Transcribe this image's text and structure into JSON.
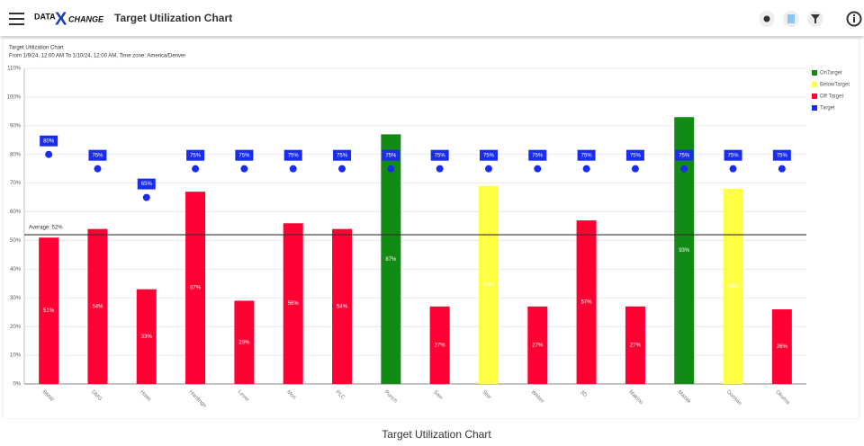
{
  "header": {
    "logo_left": "DATA",
    "logo_x": "X",
    "logo_right": "CHANGE",
    "title": "Target Utilization Chart"
  },
  "chart_data": {
    "type": "bar",
    "title": "Target Utilization Chart",
    "subtitle": "From 1/9/24, 12:00 AM To 1/10/24, 12:00 AM, Time zone: America/Denver",
    "categories": [
      "BMW",
      "DMG",
      "Haas",
      "Hardinge",
      "Lever",
      "Mori",
      "PLC",
      "Punch",
      "Saw",
      "Star",
      "Weber",
      "3D",
      "Makino",
      "Mazak",
      "Doosan",
      "Okuma"
    ],
    "series": [
      {
        "name": "OnTarget",
        "type": "bar",
        "color": "#138a13",
        "values": [
          null,
          null,
          null,
          null,
          null,
          null,
          null,
          87,
          null,
          null,
          null,
          null,
          null,
          93,
          null,
          null
        ],
        "value_labels": [
          null,
          null,
          null,
          null,
          null,
          null,
          null,
          "87%",
          null,
          null,
          null,
          null,
          null,
          "93%",
          null,
          null
        ]
      },
      {
        "name": "BelowTarget",
        "type": "bar",
        "color": "#ffff44",
        "values": [
          null,
          null,
          null,
          null,
          null,
          null,
          null,
          null,
          null,
          69,
          null,
          null,
          null,
          null,
          68,
          null
        ],
        "value_labels": [
          null,
          null,
          null,
          null,
          null,
          null,
          null,
          null,
          null,
          "69%",
          null,
          null,
          null,
          null,
          "68%",
          null
        ]
      },
      {
        "name": "Off Target",
        "type": "bar",
        "color": "#ff0033",
        "values": [
          51,
          54,
          33,
          67,
          29,
          56,
          54,
          null,
          27,
          null,
          27,
          57,
          27,
          null,
          null,
          26
        ],
        "value_labels": [
          "51%",
          "54%",
          "33%",
          "67%",
          "29%",
          "56%",
          "54%",
          null,
          "27%",
          null,
          "27%",
          "57%",
          "27%",
          null,
          null,
          "26%"
        ]
      },
      {
        "name": "Target",
        "type": "scatter",
        "color": "#1a2cf0",
        "values": [
          80,
          75,
          65,
          75,
          75,
          75,
          75,
          75,
          75,
          75,
          75,
          75,
          75,
          75,
          75,
          75
        ],
        "value_labels": [
          "80%",
          "75%",
          "65%",
          "75%",
          "75%",
          "75%",
          "75%",
          "75%",
          "75%",
          "75%",
          "75%",
          "75%",
          "75%",
          "75%",
          "75%",
          "75%"
        ]
      }
    ],
    "average": {
      "value": 52,
      "label": "Average: 52%"
    },
    "ylim": [
      0,
      110
    ],
    "yticks": [
      {
        "value": 0,
        "label": "0%"
      },
      {
        "value": 10,
        "label": "10%"
      },
      {
        "value": 20,
        "label": "20%"
      },
      {
        "value": 30,
        "label": "30%"
      },
      {
        "value": 40,
        "label": "40%"
      },
      {
        "value": 50,
        "label": "50%"
      },
      {
        "value": 60,
        "label": "60%"
      },
      {
        "value": 70,
        "label": "70%"
      },
      {
        "value": 80,
        "label": "80%"
      },
      {
        "value": 90,
        "label": "90%"
      },
      {
        "value": 100,
        "label": "100%"
      },
      {
        "value": 110,
        "label": "110%"
      }
    ],
    "grid": true,
    "legend": "top-right",
    "caption": "Target Utilization Chart"
  }
}
